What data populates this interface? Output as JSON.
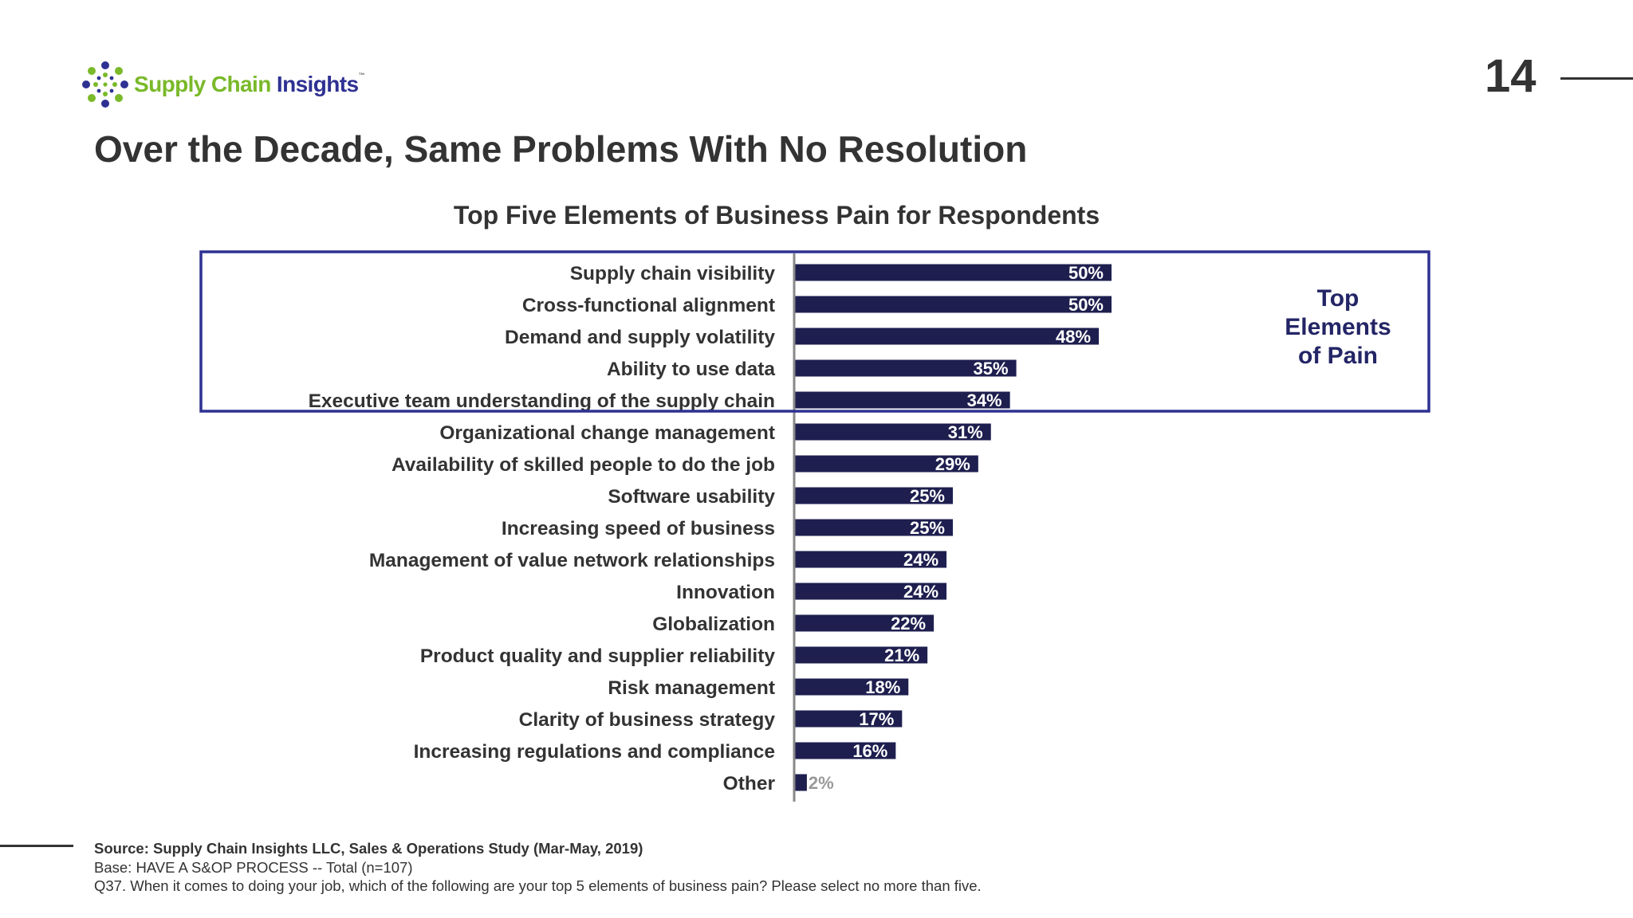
{
  "logo": {
    "text_part1": "Supply Chain",
    "text_part2": "Insights",
    "trademark": "™"
  },
  "page_number": "14",
  "title": "Over the Decade, Same Problems With No Resolution",
  "colors": {
    "bar": "#1e1f4f",
    "accent": "#2e3192",
    "logo_green": "#7ab929",
    "text": "#333333"
  },
  "chart_data": {
    "type": "bar",
    "orientation": "horizontal",
    "title": "Top Five Elements of Business Pain for Respondents",
    "xlabel": "",
    "ylabel": "",
    "xlim": [
      0,
      100
    ],
    "grid": false,
    "categories": [
      "Supply chain visibility",
      "Cross-functional alignment",
      "Demand and supply volatility",
      "Ability to use data",
      "Executive team understanding of the supply chain",
      "Organizational change management",
      "Availability of skilled people to do the job",
      "Software usability",
      "Increasing speed of business",
      "Management of value network relationships",
      "Innovation",
      "Globalization",
      "Product quality and supplier reliability",
      "Risk management",
      "Clarity of business strategy",
      "Increasing regulations and compliance",
      "Other"
    ],
    "values": [
      50,
      50,
      48,
      35,
      34,
      31,
      29,
      25,
      25,
      24,
      24,
      22,
      21,
      18,
      17,
      16,
      2
    ],
    "data_labels": [
      "50%",
      "50%",
      "48%",
      "35%",
      "34%",
      "31%",
      "29%",
      "25%",
      "25%",
      "24%",
      "24%",
      "22%",
      "21%",
      "18%",
      "17%",
      "16%",
      "2%"
    ],
    "highlight": {
      "first_n": 5,
      "label_lines": [
        "Top",
        "Elements",
        "of Pain"
      ]
    }
  },
  "footnotes": {
    "source": "Source:  Supply Chain Insights LLC, Sales & Operations Study (Mar-May, 2019)",
    "base": "Base: HAVE A S&OP PROCESS  -- Total (n=107)",
    "question": "Q37. When it comes to doing your job, which of the following are your top 5 elements of business pain? Please select no more than five."
  }
}
